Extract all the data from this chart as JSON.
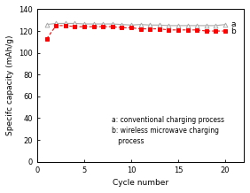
{
  "series_a_x": [
    1,
    2,
    3,
    4,
    5,
    6,
    7,
    8,
    9,
    10,
    11,
    12,
    13,
    14,
    15,
    16,
    17,
    18,
    19,
    20
  ],
  "series_a_y": [
    126,
    127,
    127,
    127,
    126.5,
    126.5,
    126.5,
    126.5,
    126,
    125.5,
    126,
    125.5,
    125.5,
    125,
    125,
    125,
    125,
    125,
    125,
    126
  ],
  "series_b_x": [
    1,
    2,
    3,
    4,
    5,
    6,
    7,
    8,
    9,
    10,
    11,
    12,
    13,
    14,
    15,
    16,
    17,
    18,
    19,
    20
  ],
  "series_b_y": [
    113,
    125,
    125,
    124,
    124,
    124,
    124,
    124,
    123,
    123,
    122,
    122,
    122,
    121,
    121,
    121,
    121,
    120,
    120,
    120
  ],
  "series_a_color": "#aaaaaa",
  "series_b_color": "#ff0000",
  "xlabel": "Cycle number",
  "ylabel": "Specifc capacity (mAh/g)",
  "ylim": [
    0,
    140
  ],
  "xlim": [
    0.5,
    21
  ],
  "yticks": [
    0,
    20,
    40,
    60,
    80,
    100,
    120,
    140
  ],
  "xticks": [
    0,
    5,
    10,
    15,
    20
  ],
  "legend_text_a": "a: conventional charging process",
  "legend_text_b": "b: wireless microwave charging\n   process",
  "label_a": "a",
  "label_b": "b",
  "bg_color": "#ffffff",
  "axis_fontsize": 6.5,
  "tick_fontsize": 6,
  "legend_fontsize": 5.5
}
